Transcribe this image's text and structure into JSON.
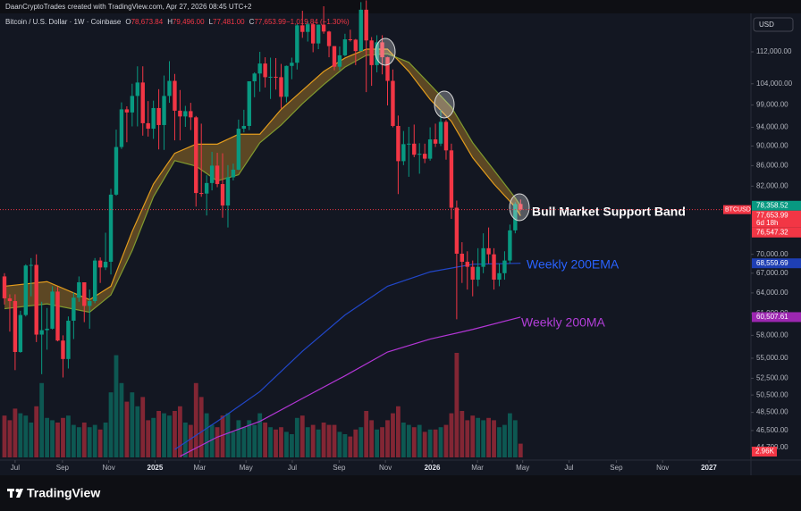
{
  "header": {
    "credit": "DaanCryptoTrades created with TradingView.com, Apr 27, 2026 08:45 UTC+2"
  },
  "footer": {
    "brand": "TradingView"
  },
  "chart_data": {
    "type": "candlestick",
    "symbol_line": "Bitcoin / U.S. Dollar · 1W · Coinbase",
    "readout": [
      {
        "key": "O",
        "value": "78,673.84"
      },
      {
        "key": "H",
        "value": "79,496.00"
      },
      {
        "key": "L",
        "value": "77,481.00"
      },
      {
        "key": "C",
        "value": "77,653.99"
      },
      {
        "key": "",
        "value": "−1,019.84 (−1.30%)"
      }
    ],
    "currency": "USD",
    "ticker": "BTCUSD",
    "log_scale": true,
    "grid": false,
    "ylim": [
      43690,
      122450
    ],
    "yticks": [
      {
        "value": 112000,
        "label": "112,000.00"
      },
      {
        "value": 104000,
        "label": "104,000.00"
      },
      {
        "value": 99000,
        "label": "99,000.00"
      },
      {
        "value": 94000,
        "label": "94,000.00"
      },
      {
        "value": 90000,
        "label": "90,000.00"
      },
      {
        "value": 86000,
        "label": "86,000.00"
      },
      {
        "value": 82000,
        "label": "82,000.00"
      },
      {
        "value": 70000,
        "label": "70,000.00"
      },
      {
        "value": 67000,
        "label": "67,000.00"
      },
      {
        "value": 64000,
        "label": "64,000.00"
      },
      {
        "value": 61000,
        "label": "61,000.00"
      },
      {
        "value": 58000,
        "label": "58,000.00"
      },
      {
        "value": 55000,
        "label": "55,000.00"
      },
      {
        "value": 52500,
        "label": "52,500.00"
      },
      {
        "value": 50500,
        "label": "50,500.00"
      },
      {
        "value": 48500,
        "label": "48,500.00"
      },
      {
        "value": 46500,
        "label": "46,500.00"
      },
      {
        "value": 44700,
        "label": "44,700.00"
      }
    ],
    "xlim": [
      -0.84,
      140.3
    ],
    "xticks": [
      {
        "value": 2,
        "label": "Jul"
      },
      {
        "value": 10.9,
        "label": "Sep"
      },
      {
        "value": 19.6,
        "label": "Nov"
      },
      {
        "value": 28.3,
        "label": "2025"
      },
      {
        "value": 36.7,
        "label": "Mar"
      },
      {
        "value": 45.4,
        "label": "May"
      },
      {
        "value": 54.1,
        "label": "Jul"
      },
      {
        "value": 62.9,
        "label": "Sep"
      },
      {
        "value": 71.6,
        "label": "Nov"
      },
      {
        "value": 80.4,
        "label": "2026"
      },
      {
        "value": 88.9,
        "label": "Mar"
      },
      {
        "value": 97.4,
        "label": "May"
      },
      {
        "value": 106.1,
        "label": "Jul"
      },
      {
        "value": 115,
        "label": "Sep"
      },
      {
        "value": 123.7,
        "label": "Nov"
      },
      {
        "value": 132.4,
        "label": "2027"
      }
    ],
    "candles": {
      "up_color": "#089981",
      "down_color": "#f23645",
      "ohlc": [
        [
          66500,
          67000,
          62300,
          63200
        ],
        [
          63200,
          63800,
          58500,
          62800
        ],
        [
          62800,
          63800,
          53500,
          55800
        ],
        [
          55800,
          61400,
          55700,
          60800
        ],
        [
          60800,
          68400,
          60600,
          68200
        ],
        [
          68200,
          69400,
          63500,
          68300
        ],
        [
          68300,
          70000,
          57100,
          58100
        ],
        [
          58100,
          62700,
          53000,
          58700
        ],
        [
          58700,
          61800,
          56100,
          58900
        ],
        [
          58900,
          65000,
          58800,
          64200
        ],
        [
          64200,
          64900,
          57200,
          57300
        ],
        [
          57300,
          58000,
          52600,
          54900
        ],
        [
          54900,
          60600,
          53700,
          60000
        ],
        [
          60000,
          64100,
          57500,
          63300
        ],
        [
          63300,
          66500,
          62700,
          65600
        ],
        [
          65600,
          65600,
          59800,
          62100
        ],
        [
          62100,
          64500,
          58900,
          62800
        ],
        [
          62800,
          69400,
          62500,
          69000
        ],
        [
          69000,
          69500,
          65500,
          67900
        ],
        [
          67900,
          73600,
          67500,
          68800
        ],
        [
          68800,
          81500,
          66800,
          80400
        ],
        [
          80400,
          93500,
          80200,
          89800
        ],
        [
          89800,
          99600,
          89400,
          98000
        ],
        [
          98000,
          98700,
          90800,
          97300
        ],
        [
          97300,
          104000,
          94200,
          101100
        ],
        [
          101100,
          108300,
          94200,
          104300
        ],
        [
          104300,
          108300,
          92200,
          94900
        ],
        [
          94900,
          99900,
          92000,
          93700
        ],
        [
          93700,
          100000,
          91500,
          98300
        ],
        [
          98300,
          102700,
          89300,
          94500
        ],
        [
          94500,
          106000,
          89200,
          101100
        ],
        [
          101100,
          109600,
          99500,
          104700
        ],
        [
          104700,
          106400,
          91200,
          97700
        ],
        [
          97700,
          102500,
          91200,
          96400
        ],
        [
          96400,
          98800,
          94100,
          97600
        ],
        [
          97600,
          99500,
          93400,
          96200
        ],
        [
          96200,
          96500,
          78200,
          80700
        ],
        [
          80700,
          94800,
          80000,
          80600
        ],
        [
          80600,
          84100,
          76600,
          82600
        ],
        [
          82600,
          88800,
          81200,
          86000
        ],
        [
          86000,
          88600,
          81800,
          82400
        ],
        [
          82400,
          88500,
          76200,
          78400
        ],
        [
          78400,
          86100,
          74500,
          83700
        ],
        [
          83700,
          86400,
          83100,
          85200
        ],
        [
          85200,
          95700,
          85100,
          93700
        ],
        [
          93700,
          97900,
          92900,
          94300
        ],
        [
          94300,
          104300,
          93400,
          104600
        ],
        [
          104600,
          106800,
          100800,
          106500
        ],
        [
          106500,
          112000,
          102100,
          109000
        ],
        [
          109000,
          110600,
          103100,
          105600
        ],
        [
          105600,
          110500,
          100400,
          105700
        ],
        [
          105700,
          110400,
          102600,
          105600
        ],
        [
          105600,
          108900,
          98200,
          100900
        ],
        [
          100900,
          108500,
          99600,
          108400
        ],
        [
          108400,
          110500,
          105100,
          109200
        ],
        [
          109200,
          119500,
          107500,
          119100
        ],
        [
          119100,
          123200,
          115700,
          117300
        ],
        [
          117300,
          120200,
          114700,
          119400
        ],
        [
          119400,
          119800,
          111900,
          114200
        ],
        [
          114200,
          119300,
          112700,
          119300
        ],
        [
          119300,
          124500,
          116800,
          117400
        ],
        [
          117400,
          117600,
          110600,
          113500
        ],
        [
          113500,
          113500,
          107300,
          108200
        ],
        [
          108200,
          113400,
          107300,
          111100
        ],
        [
          111100,
          116800,
          110800,
          115300
        ],
        [
          115300,
          117900,
          114700,
          115200
        ],
        [
          115200,
          115400,
          108600,
          112200
        ],
        [
          112200,
          125700,
          112100,
          123500
        ],
        [
          123500,
          126200,
          102000,
          115000
        ],
        [
          115000,
          115900,
          103500,
          108600
        ],
        [
          108600,
          116400,
          106800,
          114500
        ],
        [
          114500,
          116400,
          106300,
          110600
        ],
        [
          110600,
          110700,
          98900,
          104700
        ],
        [
          104700,
          107500,
          94000,
          94300
        ],
        [
          94300,
          96600,
          80500,
          86900
        ],
        [
          86900,
          93200,
          86100,
          90400
        ],
        [
          90400,
          94100,
          83800,
          90500
        ],
        [
          90500,
          94600,
          87700,
          88200
        ],
        [
          88200,
          90600,
          84400,
          88400
        ],
        [
          88400,
          90500,
          86500,
          87400
        ],
        [
          87400,
          94000,
          87000,
          91400
        ],
        [
          91400,
          94800,
          89800,
          90500
        ],
        [
          90500,
          97900,
          90000,
          95200
        ],
        [
          95200,
          95600,
          87200,
          89100
        ],
        [
          89100,
          90500,
          76000,
          78000
        ],
        [
          78000,
          79300,
          60200,
          70100
        ],
        [
          70100,
          72000,
          65500,
          68800
        ],
        [
          68800,
          70500,
          64500,
          68000
        ],
        [
          68000,
          69000,
          63500,
          66000
        ],
        [
          66000,
          71000,
          65000,
          68000
        ],
        [
          68000,
          73500,
          67000,
          71000
        ],
        [
          71000,
          74500,
          68500,
          70000
        ],
        [
          70000,
          71000,
          64500,
          66000
        ],
        [
          66000,
          68500,
          65000,
          67000
        ],
        [
          67000,
          70500,
          66000,
          69000
        ],
        [
          69000,
          75000,
          68500,
          74000
        ],
        [
          74000,
          79000,
          73500,
          78673.84
        ],
        [
          78673.84,
          79496,
          77481,
          77653.99
        ]
      ]
    },
    "volume": {
      "ylim": [
        0,
        25000
      ],
      "tag": {
        "value": 2960,
        "label": "2.96K"
      },
      "values": [
        9000,
        8000,
        10500,
        9500,
        9000,
        7500,
        11000,
        16000,
        8500,
        8000,
        7500,
        8500,
        9000,
        7000,
        6500,
        7500,
        6500,
        7000,
        6000,
        7500,
        14000,
        22000,
        16000,
        12000,
        14000,
        11000,
        13000,
        8000,
        8500,
        10000,
        9500,
        9000,
        10000,
        11000,
        7500,
        7000,
        16000,
        13000,
        9500,
        7000,
        6500,
        9000,
        9500,
        5500,
        8000,
        6500,
        8000,
        7000,
        9500,
        7500,
        6500,
        6000,
        6500,
        5500,
        5000,
        8500,
        9000,
        6500,
        7000,
        6000,
        7500,
        7000,
        7000,
        5500,
        5000,
        4500,
        6000,
        6500,
        10000,
        8000,
        6000,
        6500,
        8000,
        9500,
        11000,
        7500,
        7000,
        6500,
        7000,
        5500,
        6000,
        6000,
        6500,
        7000,
        9500,
        22500,
        10000,
        8000,
        9000,
        8500,
        8000,
        8500,
        8000,
        6500,
        7000,
        9500,
        8000,
        2960
      ]
    },
    "band_fill": "rgba(214,150,40,0.38)",
    "series": [
      {
        "color": "#e39c1d",
        "x": [
          0,
          8,
          16,
          20,
          24,
          28,
          32,
          36,
          40,
          44,
          48,
          52,
          56,
          60,
          64,
          68,
          72,
          76,
          80,
          84,
          88,
          92,
          96,
          97
        ],
        "values": [
          65000,
          65700,
          63000,
          65000,
          73800,
          82400,
          88500,
          90400,
          90400,
          92500,
          92500,
          98000,
          102400,
          107000,
          110400,
          112700,
          112700,
          107000,
          100300,
          95300,
          87600,
          82400,
          78100,
          76547.32
        ]
      },
      {
        "color": "#7f9a2f",
        "x": [
          0,
          8,
          16,
          20,
          24,
          28,
          32,
          36,
          40,
          44,
          48,
          52,
          56,
          60,
          64,
          68,
          72,
          76,
          80,
          84,
          88,
          92,
          96,
          97
        ],
        "values": [
          61700,
          62400,
          61200,
          63700,
          70600,
          80000,
          87000,
          85900,
          83000,
          84200,
          90700,
          94500,
          99300,
          103800,
          108100,
          111100,
          111500,
          109300,
          103800,
          98500,
          90700,
          85100,
          79800,
          78358.52
        ]
      },
      {
        "color": "#2147c9",
        "x": [
          32,
          40,
          48,
          56,
          64,
          72,
          80,
          88,
          97
        ],
        "values": [
          44500,
          47500,
          50900,
          55900,
          60800,
          65000,
          67200,
          68400,
          68559.69
        ]
      },
      {
        "color": "#b336d6",
        "x": [
          33,
          40,
          48,
          56,
          64,
          72,
          80,
          88,
          97
        ],
        "values": [
          43800,
          45800,
          47500,
          50100,
          52800,
          55800,
          57500,
          58800,
          60507.61
        ]
      }
    ],
    "annotations": [
      {
        "text": "Bull Market Support Band",
        "color": "#ffffff"
      },
      {
        "text": "Weekly 200EMA",
        "color": "#2962ff"
      },
      {
        "text": "Weekly 200MA",
        "color": "#b33fd9"
      }
    ],
    "price_tags": [
      {
        "value": 78358.52,
        "label": "78,358.52",
        "color": "#089981"
      },
      {
        "value": 77653.99,
        "label": "77,653.99",
        "color": "#f23645",
        "countdown": "6d 18h"
      },
      {
        "value": 76547.32,
        "label": "76,547.32",
        "color": "#f23645"
      },
      {
        "value": 68559.69,
        "label": "68,559.69",
        "color": "#1e3fb4"
      },
      {
        "value": 60507.61,
        "label": "60,507.61",
        "color": "#9c27b0"
      }
    ]
  }
}
